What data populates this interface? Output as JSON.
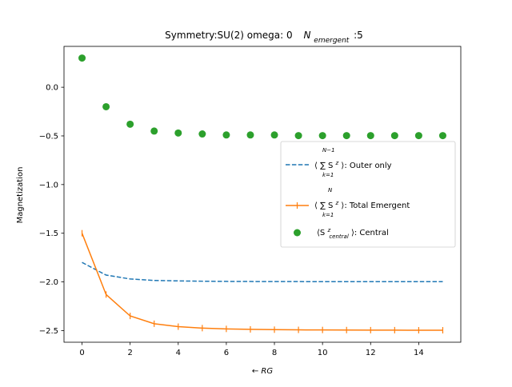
{
  "chart_data": {
    "type": "line",
    "title": "Symmetry:SU(2)  omega: 0",
    "title_suffix_symbol": "N",
    "title_suffix_subscript": "emergent",
    "title_suffix_value": ":5",
    "xlabel": "← RG",
    "ylabel": "Magnetization",
    "xlim": [
      -0.75,
      15.75
    ],
    "ylim": [
      -2.62,
      0.42
    ],
    "x_ticks": [
      0,
      2,
      4,
      6,
      8,
      10,
      12,
      14
    ],
    "x_tick_labels": [
      "0",
      "2",
      "4",
      "6",
      "8",
      "10",
      "12",
      "14"
    ],
    "y_ticks": [
      0.0,
      -0.5,
      -1.0,
      -1.5,
      -2.0,
      -2.5
    ],
    "y_tick_labels": [
      "0.0",
      "−0.5",
      "−1.0",
      "−1.5",
      "−2.0",
      "−2.5"
    ],
    "grid": false,
    "legend_position": "center-right",
    "x": [
      0,
      1,
      2,
      3,
      4,
      5,
      6,
      7,
      8,
      9,
      10,
      11,
      12,
      13,
      14,
      15
    ],
    "series": [
      {
        "name": "Outer only",
        "style": "dashed",
        "color": "#1f77b4",
        "legend_prefix": "⟨ ∑ S",
        "legend_sum_top": "N−1",
        "legend_sum_bottom": "k=1",
        "legend_suffix": "⟩: Outer only",
        "values": [
          -1.8,
          -1.93,
          -1.97,
          -1.985,
          -1.99,
          -1.993,
          -1.995,
          -1.996,
          -1.997,
          -1.997,
          -1.998,
          -1.998,
          -1.998,
          -1.998,
          -1.998,
          -1.998
        ]
      },
      {
        "name": "Total Emergent",
        "style": "line-plus",
        "color": "#ff7f0e",
        "legend_prefix": "⟨ ∑ S",
        "legend_sum_top": "N",
        "legend_sum_bottom": "k=1",
        "legend_suffix": "⟩: Total Emergent",
        "values": [
          -1.5,
          -2.13,
          -2.35,
          -2.43,
          -2.46,
          -2.475,
          -2.483,
          -2.488,
          -2.491,
          -2.493,
          -2.494,
          -2.495,
          -2.496,
          -2.496,
          -2.497,
          -2.497
        ]
      },
      {
        "name": "Central",
        "style": "scatter",
        "color": "#2ca02c",
        "legend_label": "⟨S",
        "legend_sub": "central",
        "legend_suffix": "⟩: Central",
        "values": [
          0.3,
          -0.2,
          -0.38,
          -0.45,
          -0.47,
          -0.48,
          -0.49,
          -0.49,
          -0.49,
          -0.497,
          -0.497,
          -0.497,
          -0.497,
          -0.497,
          -0.497,
          -0.497
        ]
      }
    ]
  }
}
